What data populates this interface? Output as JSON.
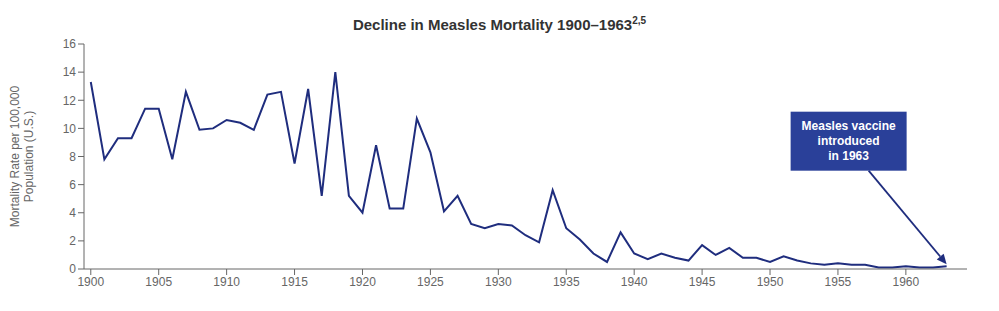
{
  "chart_data": {
    "type": "line",
    "title": "Decline in Measles Mortality 1900–1963",
    "title_superscript": "2,5",
    "ylabel": "Mortality Rate per 100,000\nPopulation (U.S.)",
    "color": "#1f2d7e",
    "x": [
      1900,
      1901,
      1902,
      1903,
      1904,
      1905,
      1906,
      1907,
      1908,
      1909,
      1910,
      1911,
      1912,
      1913,
      1914,
      1915,
      1916,
      1917,
      1918,
      1919,
      1920,
      1921,
      1922,
      1923,
      1924,
      1925,
      1926,
      1927,
      1928,
      1929,
      1930,
      1931,
      1932,
      1933,
      1934,
      1935,
      1936,
      1937,
      1938,
      1939,
      1940,
      1941,
      1942,
      1943,
      1944,
      1945,
      1946,
      1947,
      1948,
      1949,
      1950,
      1951,
      1952,
      1953,
      1954,
      1955,
      1956,
      1957,
      1958,
      1959,
      1960,
      1961,
      1962,
      1963
    ],
    "values": [
      13.3,
      7.8,
      9.3,
      9.3,
      11.4,
      11.4,
      7.8,
      12.6,
      9.9,
      10.0,
      10.6,
      10.4,
      9.9,
      12.4,
      12.6,
      7.5,
      12.8,
      5.2,
      14.0,
      5.2,
      4.0,
      8.8,
      4.3,
      4.3,
      10.7,
      8.3,
      4.1,
      5.2,
      3.2,
      2.9,
      3.2,
      3.1,
      2.4,
      1.9,
      5.6,
      2.9,
      2.1,
      1.1,
      0.5,
      2.6,
      1.1,
      0.7,
      1.1,
      0.8,
      0.6,
      1.7,
      1.0,
      1.5,
      0.8,
      0.8,
      0.5,
      0.9,
      0.6,
      0.4,
      0.3,
      0.4,
      0.3,
      0.3,
      0.1,
      0.1,
      0.2,
      0.1,
      0.1,
      0.2
    ],
    "xlim": [
      1899.5,
      1964.5
    ],
    "xticks": [
      1900,
      1905,
      1910,
      1915,
      1920,
      1925,
      1930,
      1935,
      1940,
      1945,
      1950,
      1955,
      1960
    ],
    "ylim": [
      0,
      16
    ],
    "yticks": [
      0,
      2,
      4,
      6,
      8,
      10,
      12,
      14,
      16
    ],
    "grid": false,
    "annotation": {
      "text": "Measles vaccine\nintroduced\nin 1963",
      "x": 1963,
      "y": 0.2,
      "color": "#ffffff",
      "background": "#2a4099"
    }
  }
}
